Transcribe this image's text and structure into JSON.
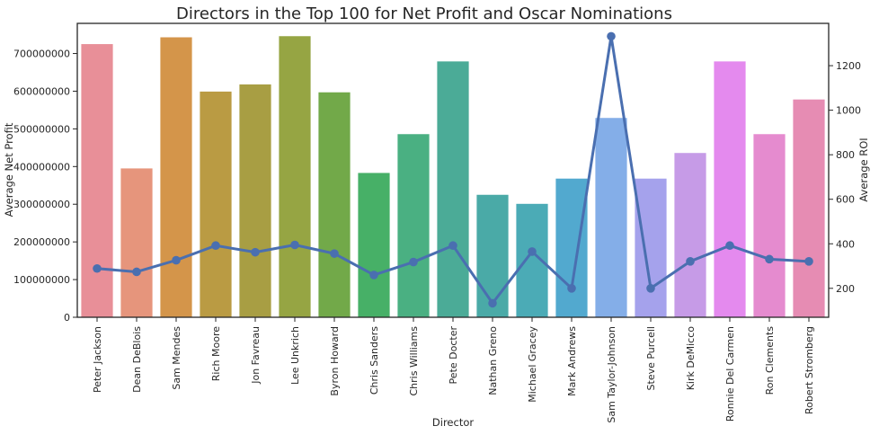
{
  "chart_data": {
    "type": "bar",
    "title": "Directors in the Top 100 for Net Profit and Oscar Nominations",
    "xlabel": "Director",
    "ylabel": "Average Net Profit",
    "y2label": "Average ROI",
    "ylim": [
      0,
      780000000
    ],
    "y2lim": [
      70,
      1390
    ],
    "yticks": [
      "0",
      "100000000",
      "200000000",
      "300000000",
      "400000000",
      "500000000",
      "600000000",
      "700000000"
    ],
    "y2ticks": [
      "200",
      "400",
      "600",
      "800",
      "1000",
      "1200"
    ],
    "categories": [
      "Peter Jackson",
      "Dean DeBlois",
      "Sam Mendes",
      "Rich Moore",
      "Jon Favreau",
      "Lee Unkrich",
      "Byron Howard",
      "Chris Sanders",
      "Chris Williams",
      "Pete Docter",
      "Nathan Greno",
      "Michael Gracey",
      "Mark Andrews",
      "Sam Taylor-Johnson",
      "Steve Purcell",
      "Kirk DeMicco",
      "Ronnie Del Carmen",
      "Ron Clements",
      "Robert Stromberg"
    ],
    "series": [
      {
        "kind": "bar",
        "values": [
          725000000,
          395000000,
          743000000,
          599000000,
          618000000,
          746000000,
          597000000,
          383000000,
          486000000,
          679000000,
          325000000,
          301000000,
          368000000,
          529000000,
          368000000,
          436000000,
          679000000,
          486000000,
          578000000
        ]
      },
      {
        "kind": "line",
        "axis": "right",
        "values": [
          289,
          274,
          326,
          392,
          362,
          395,
          356,
          260,
          318,
          392,
          133,
          365,
          200,
          1332,
          200,
          321,
          392,
          331,
          321
        ]
      }
    ],
    "colors": {
      "bars": [
        "#e88f98",
        "#e6957c",
        "#d4954a",
        "#ba9b43",
        "#a89e43",
        "#96a543",
        "#72a949",
        "#47b067",
        "#4ab082",
        "#4bab97",
        "#4aaaa7",
        "#4babb6",
        "#52a9cf",
        "#84aee8",
        "#a5a2ec",
        "#c69be7",
        "#e48aee",
        "#e58bcf",
        "#e68cb3"
      ],
      "line": "#4a6fb0"
    }
  }
}
